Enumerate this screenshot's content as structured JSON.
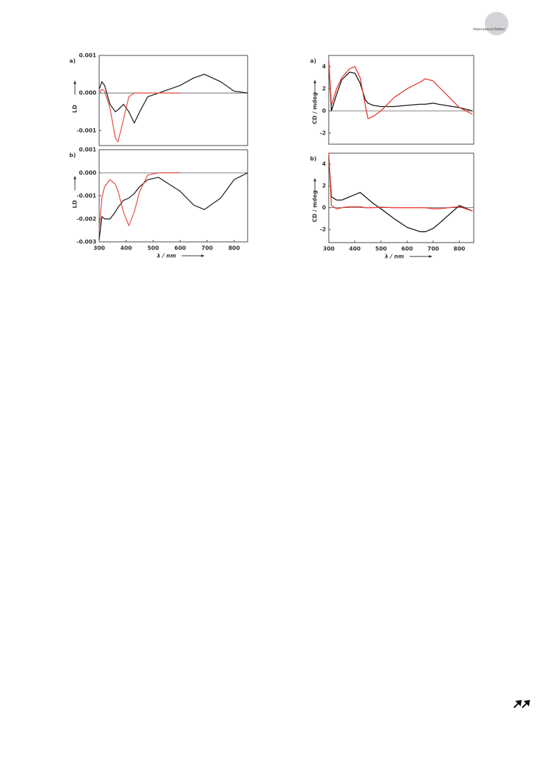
{
  "header": {
    "badge": "International Edition"
  },
  "chart_data": [
    {
      "type": "line",
      "panel_label": "a)",
      "ylabel": "LD",
      "xlim": [
        300,
        850
      ],
      "ylim": [
        -0.0014,
        0.001
      ],
      "yticks": [
        0.001,
        {
          "value": 0,
          "label": "0.000"
        },
        {
          "value": -0.001,
          "label": "-0.001"
        }
      ],
      "x": [
        300,
        310,
        320,
        340,
        360,
        370,
        390,
        410,
        430,
        450,
        480,
        520,
        600,
        650,
        690,
        750,
        800,
        850
      ],
      "series": [
        {
          "color": "#222222",
          "values": [
            0.0001,
            0.0003,
            0.0002,
            -0.0003,
            -0.0005,
            -0.00045,
            -0.0003,
            -0.0005,
            -0.0008,
            -0.0005,
            -0.0001,
            0,
            0.0002,
            0.0004,
            0.0005,
            0.0003,
            5e-05,
            0
          ]
        },
        {
          "color": "#e8524a",
          "values": [
            0,
            0.0001,
            5e-05,
            -0.0004,
            -0.0012,
            -0.0013,
            -0.0007,
            -0.0001,
            0,
            0,
            0,
            0,
            0,
            null,
            null,
            null,
            null,
            null
          ]
        }
      ]
    },
    {
      "type": "line",
      "panel_label": "b)",
      "ylabel": "LD",
      "xlabel": "λ / nm",
      "xlim": [
        300,
        850
      ],
      "ylim": [
        -0.003,
        0.001
      ],
      "xticks": [
        300,
        400,
        500,
        600,
        700,
        800
      ],
      "yticks": [
        0.001,
        {
          "value": 0,
          "label": "0.000"
        },
        {
          "value": -0.001,
          "label": "-0.001"
        },
        {
          "value": -0.002,
          "label": "-0.002"
        },
        {
          "value": -0.003,
          "label": "-0.003"
        }
      ],
      "x": [
        300,
        310,
        320,
        340,
        360,
        370,
        390,
        410,
        430,
        450,
        480,
        520,
        600,
        650,
        690,
        750,
        800,
        850
      ],
      "series": [
        {
          "color": "#222222",
          "values": [
            -0.0029,
            -0.0019,
            -0.002,
            -0.002,
            -0.0017,
            -0.0015,
            -0.0012,
            -0.0011,
            -0.0009,
            -0.0006,
            -0.0003,
            -0.0002,
            -0.0008,
            -0.0014,
            -0.0016,
            -0.0011,
            -0.0003,
            0
          ]
        },
        {
          "color": "#e8524a",
          "values": [
            -0.0025,
            -0.0011,
            -0.0006,
            -0.0003,
            -0.0005,
            -0.0008,
            -0.0017,
            -0.0023,
            -0.0017,
            -0.0008,
            -0.0001,
            0,
            0,
            null,
            null,
            null,
            null,
            null
          ]
        }
      ]
    },
    {
      "type": "line",
      "panel_label": "a)",
      "ylabel": "CD / mdeg",
      "xlim": [
        300,
        855
      ],
      "ylim": [
        -3,
        5
      ],
      "yticks": [
        -2,
        0,
        2,
        4
      ],
      "x": [
        300,
        310,
        330,
        350,
        380,
        400,
        420,
        440,
        450,
        470,
        500,
        550,
        600,
        650,
        670,
        700,
        720,
        800,
        850
      ],
      "series": [
        {
          "color": "#111111",
          "values": [
            4.5,
            0,
            1.5,
            2.8,
            3.5,
            3.4,
            2.5,
            1.0,
            0.7,
            0.5,
            0.4,
            0.4,
            0.5,
            0.6,
            0.6,
            0.7,
            0.6,
            0.3,
            0
          ]
        },
        {
          "color": "#e8332a",
          "values": [
            4.5,
            0.5,
            2,
            3,
            3.8,
            4.0,
            3.0,
            0.5,
            -0.7,
            -0.5,
            0,
            1.2,
            2.0,
            2.6,
            2.9,
            2.7,
            2.2,
            0.3,
            -0.3
          ]
        }
      ]
    },
    {
      "type": "line",
      "panel_label": "b)",
      "ylabel": "CD / mdeg",
      "xlabel": "λ / nm",
      "xlim": [
        300,
        855
      ],
      "ylim": [
        -3.2,
        5
      ],
      "xticks": [
        300,
        400,
        500,
        600,
        700,
        800
      ],
      "yticks": [
        -2,
        0,
        2,
        4
      ],
      "x": [
        300,
        310,
        330,
        350,
        380,
        400,
        420,
        440,
        450,
        470,
        500,
        550,
        600,
        650,
        670,
        700,
        720,
        800,
        850
      ],
      "series": [
        {
          "color": "#111111",
          "values": [
            4.7,
            1.0,
            0.7,
            0.7,
            1.0,
            1.2,
            1.4,
            1.0,
            0.8,
            0.4,
            -0.1,
            -1.0,
            -1.8,
            -2.2,
            -2.2,
            -1.9,
            -1.5,
            0.2,
            -0.3
          ]
        },
        {
          "color": "#e8332a",
          "values": [
            5,
            0.2,
            -0.1,
            0,
            0.1,
            0.1,
            0.1,
            0,
            0,
            0,
            0.05,
            0,
            0,
            0,
            0,
            -0.1,
            -0.1,
            0.1,
            -0.3
          ]
        }
      ]
    }
  ]
}
